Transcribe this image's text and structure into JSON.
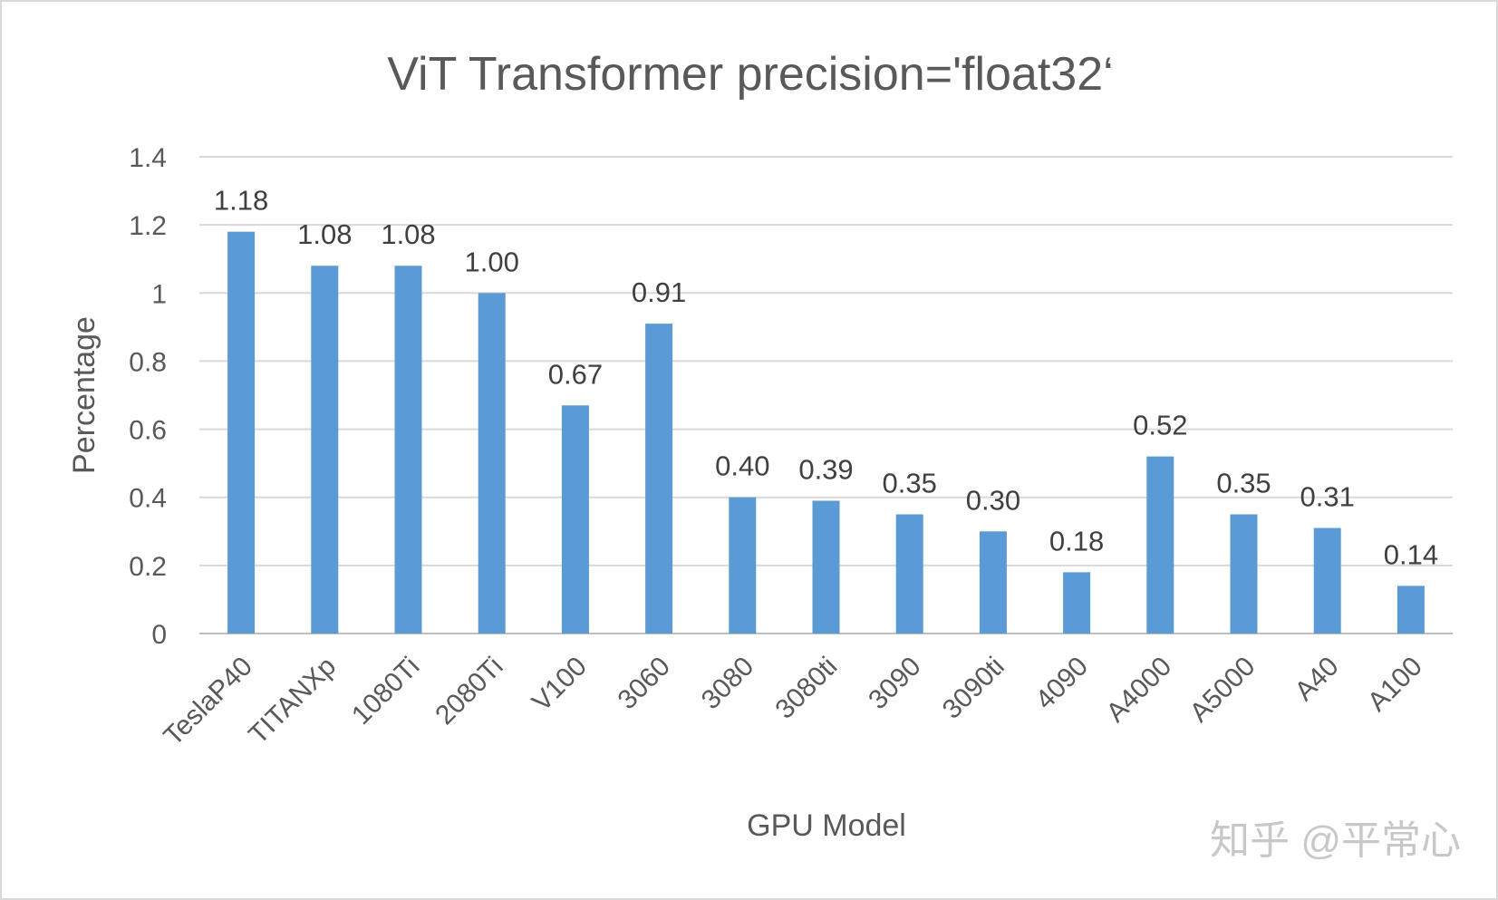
{
  "chart_data": {
    "type": "bar",
    "title": "ViT Transformer precision='float32‘",
    "xlabel": "GPU Model",
    "ylabel": "Percentage",
    "categories": [
      "TeslaP40",
      "TITANXp",
      "1080Ti",
      "2080Ti",
      "V100",
      "3060",
      "3080",
      "3080ti",
      "3090",
      "3090ti",
      "4090",
      "A4000",
      "A5000",
      "A40",
      "A100"
    ],
    "values": [
      1.18,
      1.08,
      1.08,
      1.0,
      0.67,
      0.91,
      0.4,
      0.39,
      0.35,
      0.3,
      0.18,
      0.52,
      0.35,
      0.31,
      0.14
    ],
    "data_labels": [
      "1.18",
      "1.08",
      "1.08",
      "1.00",
      "0.67",
      "0.91",
      "0.40",
      "0.39",
      "0.35",
      "0.30",
      "0.18",
      "0.52",
      "0.35",
      "0.31",
      "0.14"
    ],
    "ylim": [
      0,
      1.4
    ],
    "yticks": [
      0,
      0.2,
      0.4,
      0.6,
      0.8,
      1,
      1.2,
      1.4
    ],
    "ytick_labels": [
      "0",
      "0.2",
      "0.4",
      "0.6",
      "0.8",
      "1",
      "1.2",
      "1.4"
    ],
    "grid": true,
    "legend": "none",
    "bar_color": "#5b9bd5",
    "grid_color": "#d9d9d9"
  },
  "watermark": "知乎 @平常心"
}
